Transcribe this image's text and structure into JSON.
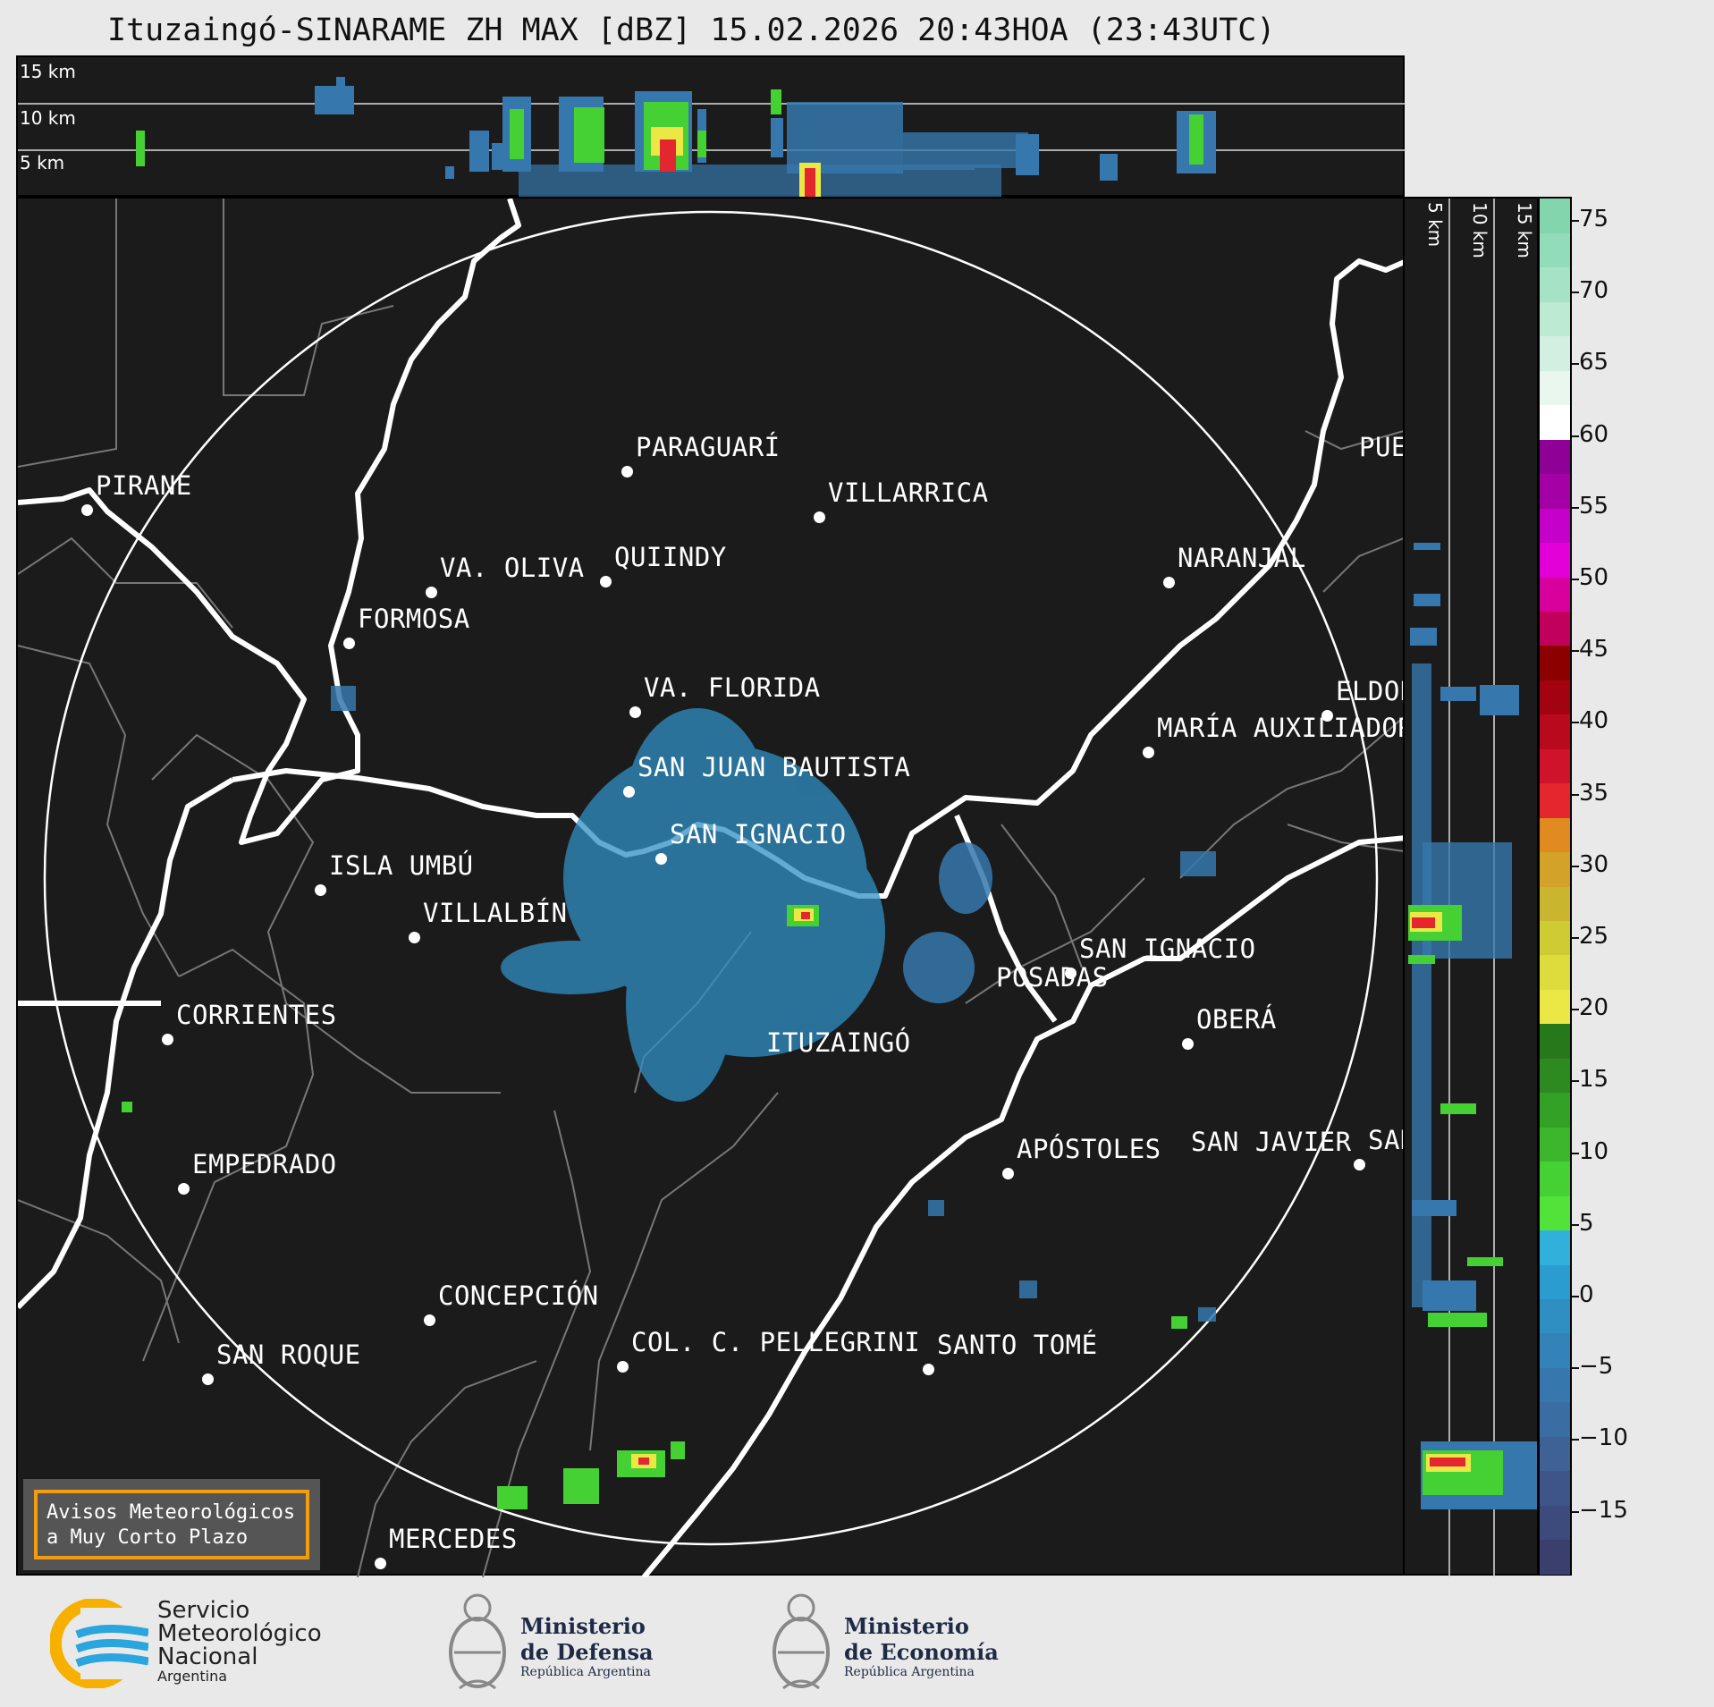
{
  "title": "Ituzaingó-SINARAME ZH MAX [dBZ] 15.02.2026 20:43HOA (23:43UTC)",
  "top_panel": {
    "height_labels": [
      "15 km",
      "10 km",
      "5 km"
    ]
  },
  "side_panel": {
    "height_labels": [
      "5 km",
      "10 km",
      "15 km"
    ]
  },
  "cities": [
    {
      "name": "PIRANE"
    },
    {
      "name": "PARAGUARÍ"
    },
    {
      "name": "VILLARRICA"
    },
    {
      "name": "QUIINDY"
    },
    {
      "name": "VA. OLIVA"
    },
    {
      "name": "NARANJAL"
    },
    {
      "name": "FORMOSA"
    },
    {
      "name": "VA. FLORIDA"
    },
    {
      "name": "ELDORADO"
    },
    {
      "name": "MARÍA AUXILIADORA"
    },
    {
      "name": "SAN JUAN BAUTISTA"
    },
    {
      "name": "SAN IGNACIO"
    },
    {
      "name": "ISLA UMBÚ"
    },
    {
      "name": "VILLALBÍN"
    },
    {
      "name": "SAN IGNACIO"
    },
    {
      "name": "POSADAS"
    },
    {
      "name": "CORRIENTES"
    },
    {
      "name": "ITUZAINGÓ"
    },
    {
      "name": "OBERÁ"
    },
    {
      "name": "APÓSTOLES"
    },
    {
      "name": "SAN JAVIER"
    },
    {
      "name": "SAN"
    },
    {
      "name": "EMPEDRADO"
    },
    {
      "name": "CONCEPCIÓN"
    },
    {
      "name": "COL. C. PELLEGRINI"
    },
    {
      "name": "SANTO TOMÉ"
    },
    {
      "name": "SAN ROQUE"
    },
    {
      "name": "MERCEDES"
    },
    {
      "name": "PUERTO"
    }
  ],
  "colorbar": {
    "ticks": [
      "75",
      "70",
      "65",
      "60",
      "55",
      "50",
      "45",
      "40",
      "35",
      "30",
      "25",
      "20",
      "15",
      "10",
      "5",
      "0",
      "−5",
      "−10",
      "−15"
    ],
    "colors": [
      "#3a3f6e",
      "#3c4a7c",
      "#3d5589",
      "#3e6196",
      "#3a6ea3",
      "#3678ad",
      "#3383b8",
      "#2f8fc3",
      "#2b9ccf",
      "#31b0dc",
      "#52e33a",
      "#45d034",
      "#3cb72d",
      "#33a026",
      "#2c8a20",
      "#27781b",
      "#ebe846",
      "#dddc3c",
      "#cfcb33",
      "#c9b52e",
      "#d3a228",
      "#e08a20",
      "#e4272f",
      "#cf132b",
      "#b80a1c",
      "#a30311",
      "#8c0000",
      "#c0005a",
      "#d8009c",
      "#e300d8",
      "#c500c8",
      "#a300a6",
      "#8e0096",
      "#ffffff",
      "#e9f7ef",
      "#d2f0e1",
      "#bcead3",
      "#a6e3c6",
      "#93dcb9",
      "#83d5ae"
    ]
  },
  "warning_box": {
    "line1": "Avisos Meteorológicos",
    "line2": "a Muy Corto Plazo"
  },
  "logos": {
    "smn": {
      "line1": "Servicio",
      "line2": "Meteorológico",
      "line3": "Nacional",
      "line4": "Argentina"
    },
    "defensa": {
      "line1": "Ministerio",
      "line2": "de Defensa",
      "line3": "República Argentina"
    },
    "economia": {
      "line1": "Ministerio",
      "line2": "de Economía",
      "line3": "República Argentina"
    }
  }
}
